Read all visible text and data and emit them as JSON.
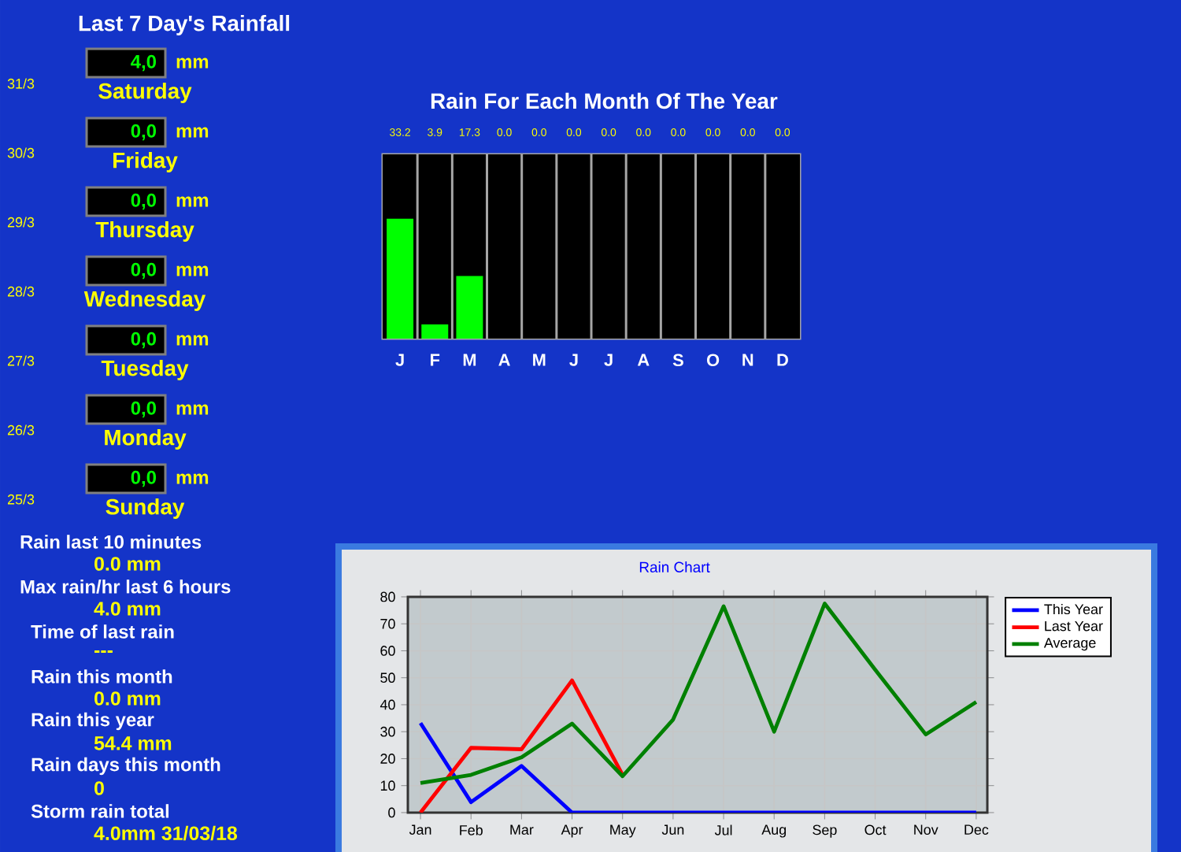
{
  "chart_data": [
    {
      "type": "other",
      "title": "Last 7 Day's Rainfall",
      "annotations": [
        "31/3",
        "4,0",
        "mm",
        "Saturday",
        "30/3",
        "0,0",
        "mm",
        "Friday",
        "29/3",
        "0,0",
        "mm",
        "Thursday",
        "28/3",
        "0,0",
        "mm",
        "Wednesday",
        "27/3",
        "0,0",
        "mm",
        "Tuesday",
        "26/3",
        "0,0",
        "mm",
        "Monday",
        "25/3",
        "0,0",
        "mm",
        "Sunday",
        "Rain last 10 minutes",
        "0.0 mm",
        "Max rain/hr last 6 hours",
        "4.0 mm",
        "Time of last rain",
        "---",
        "Rain this month",
        "0.0 mm",
        "Rain this year",
        "54.4 mm",
        "Rain days this month",
        "0",
        "Storm rain total",
        "4.0mm 31/03/18"
      ]
    },
    {
      "type": "bar",
      "title": "Rain For Each Month Of The Year",
      "categories": [
        "J",
        "F",
        "M",
        "A",
        "M",
        "J",
        "J",
        "A",
        "S",
        "O",
        "N",
        "D"
      ],
      "values": [
        33.2,
        3.9,
        17.3,
        0.0,
        0.0,
        0.0,
        0.0,
        0.0,
        0.0,
        0.0,
        0.0,
        0.0
      ],
      "value_labels": [
        "33.2",
        "3.9",
        "17.3",
        "0.0",
        "0.0",
        "0.0",
        "0.0",
        "0.0",
        "0.0",
        "0.0",
        "0.0",
        "0.0"
      ],
      "color": "#00ff00",
      "ylim": [
        0,
        51
      ],
      "tick_labels": "x"
    },
    {
      "type": "line",
      "title": "Rain Chart",
      "categories": [
        "Jan",
        "Feb",
        "Mar",
        "Apr",
        "May",
        "Jun",
        "Jul",
        "Aug",
        "Sep",
        "Oct",
        "Nov",
        "Dec"
      ],
      "series": [
        {
          "name": "This Year",
          "color": "#0000ff",
          "values": [
            33.2,
            3.9,
            17.3,
            0,
            0,
            0,
            0,
            0,
            0,
            0,
            0,
            0
          ]
        },
        {
          "name": "Last Year",
          "color": "#ff0000",
          "values": [
            0,
            24,
            23.5,
            49,
            14,
            null,
            null,
            null,
            null,
            null,
            null,
            null
          ]
        },
        {
          "name": "Average",
          "color": "#008000",
          "values": [
            11,
            14,
            20.5,
            33,
            13.5,
            34.5,
            76.5,
            30,
            77.5,
            53,
            29,
            41
          ]
        }
      ],
      "ylim": [
        0,
        80
      ],
      "yticks": [
        0,
        10,
        20,
        30,
        40,
        50,
        60,
        70,
        80
      ],
      "grid": true,
      "legend": "top right"
    }
  ]
}
